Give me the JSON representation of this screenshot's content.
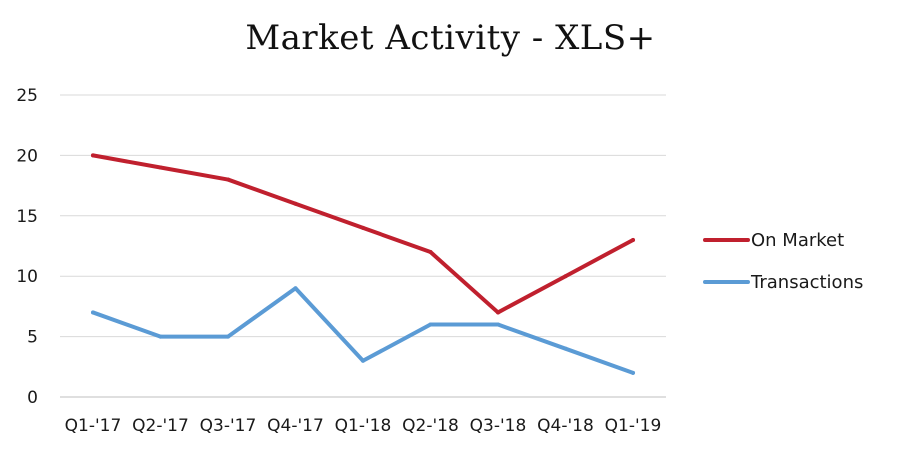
{
  "chart_data": {
    "type": "line",
    "title": "Market Activity - XLS+",
    "categories": [
      "Q1-'17",
      "Q2-'17",
      "Q3-'17",
      "Q4-'17",
      "Q1-'18",
      "Q2-'18",
      "Q3-'18",
      "Q4-'18",
      "Q1-'19"
    ],
    "series": [
      {
        "name": "On Market",
        "color": "#c0202e",
        "values": [
          20,
          19,
          18,
          16,
          14,
          12,
          7,
          10,
          13
        ]
      },
      {
        "name": "Transactions",
        "color": "#5b9bd5",
        "values": [
          7,
          5,
          5,
          9,
          3,
          6,
          6,
          4,
          2
        ]
      }
    ],
    "ylim": [
      0,
      25
    ],
    "yticks": [
      0,
      5,
      10,
      15,
      20,
      25
    ],
    "grid": true,
    "legend": "right",
    "xlabel": "",
    "ylabel": ""
  }
}
